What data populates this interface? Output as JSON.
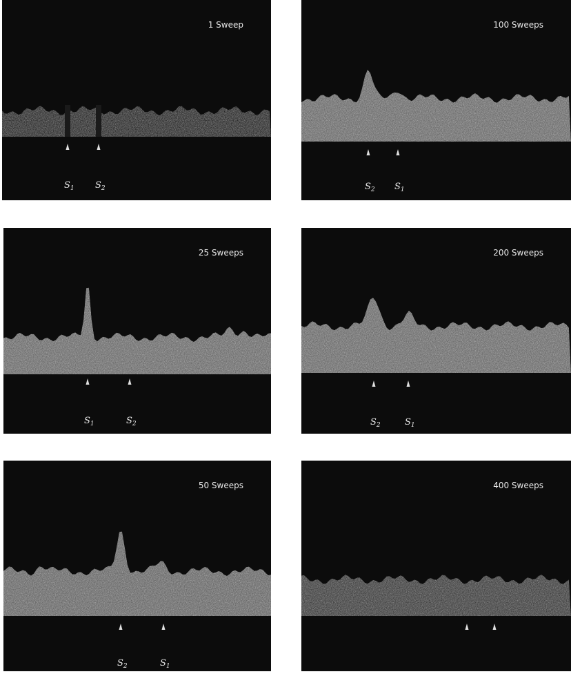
{
  "panels": [
    {
      "caption": "1 Sweep",
      "peaks": [
        {
          "name": "S",
          "sub": "1"
        },
        {
          "name": "S",
          "sub": "2"
        }
      ]
    },
    {
      "caption": "100 Sweeps",
      "peaks": [
        {
          "name": "S",
          "sub": "2"
        },
        {
          "name": "S",
          "sub": "1"
        }
      ]
    },
    {
      "caption": "25 Sweeps",
      "peaks": [
        {
          "name": "S",
          "sub": "1"
        },
        {
          "name": "S",
          "sub": "2"
        }
      ]
    },
    {
      "caption": "200 Sweeps",
      "peaks": [
        {
          "name": "S",
          "sub": "2"
        },
        {
          "name": "S",
          "sub": "1"
        }
      ]
    },
    {
      "caption": "50 Sweeps",
      "peaks": [
        {
          "name": "S",
          "sub": "2"
        },
        {
          "name": "S",
          "sub": "1"
        }
      ]
    },
    {
      "caption": "400 Sweeps",
      "peaks": []
    }
  ]
}
